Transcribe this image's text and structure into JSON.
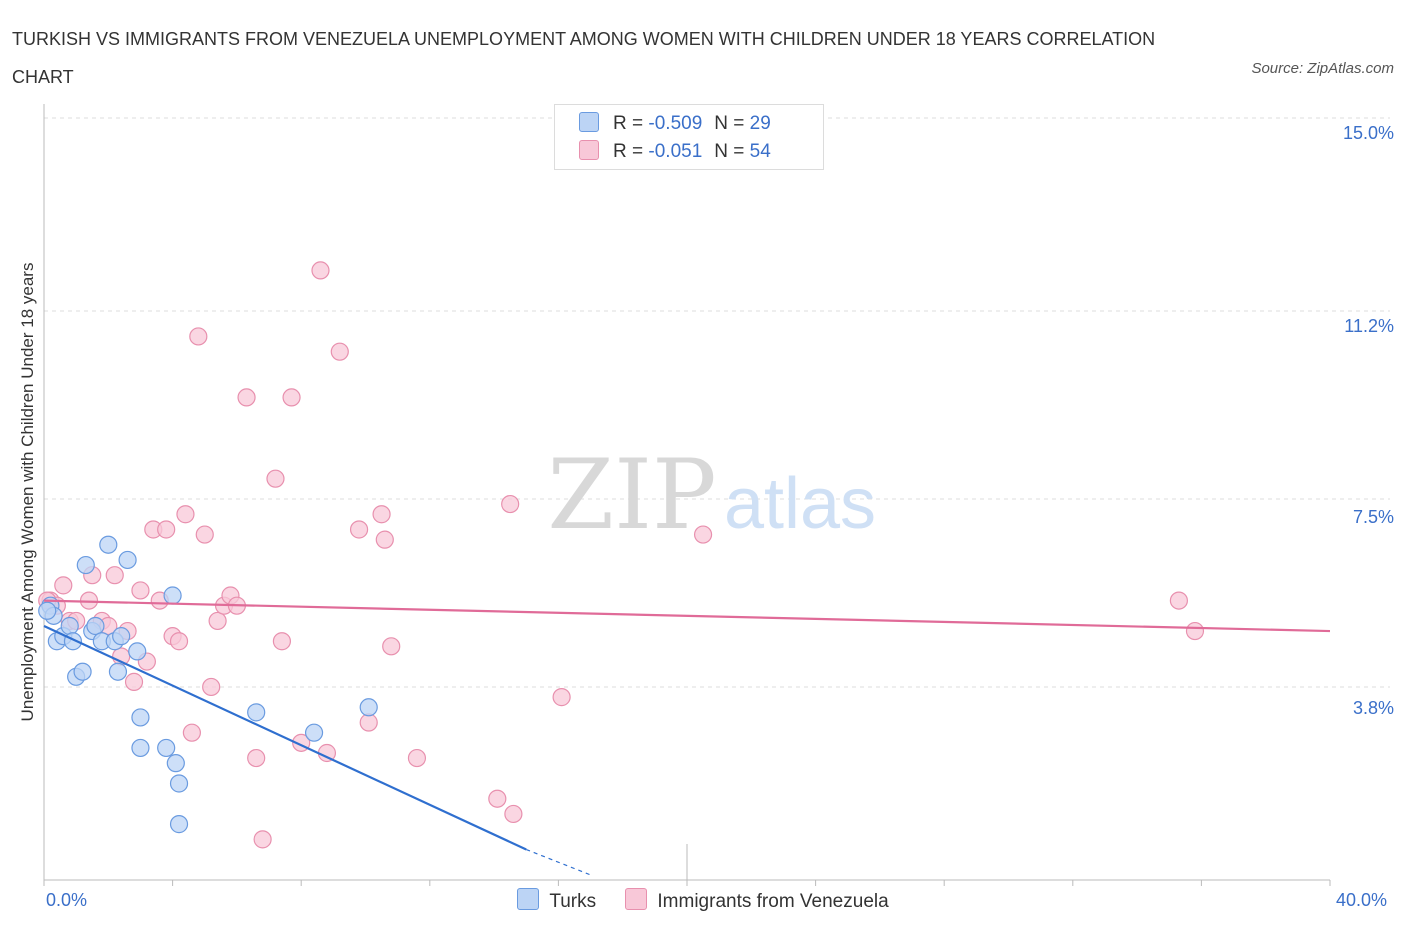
{
  "title": "TURKISH VS IMMIGRANTS FROM VENEZUELA UNEMPLOYMENT AMONG WOMEN WITH CHILDREN UNDER 18 YEARS CORRELATION CHART",
  "source": "Source: ZipAtlas.com",
  "watermark": {
    "zip": "ZIP",
    "atlas": "atlas"
  },
  "colors": {
    "turks_fill": "#bcd4f5",
    "turks_stroke": "#6a9be0",
    "turks_line": "#2f6fcf",
    "venezuela_fill": "#f8c8d8",
    "venezuela_stroke": "#e890ae",
    "venezuela_line": "#e06b98",
    "axis_text": "#3a6fc9",
    "grid": "#dddddd"
  },
  "legend_top": [
    {
      "r_label": "R =",
      "r_value": "-0.509",
      "n_label": "N =",
      "n_value": "29"
    },
    {
      "r_label": "R =",
      "r_value": "-0.051",
      "n_label": "N =",
      "n_value": "54"
    }
  ],
  "chart_data": {
    "type": "scatter",
    "xlabel": "",
    "ylabel": "Unemployment Among Women with Children Under 18 years",
    "xlim": [
      0,
      40
    ],
    "ylim": [
      0,
      15
    ],
    "x_tick_labels": [
      "0.0%",
      "40.0%"
    ],
    "y_ticks": [
      3.8,
      7.5,
      11.2,
      15.0
    ],
    "y_tick_labels": [
      "3.8%",
      "7.5%",
      "11.2%",
      "15.0%"
    ],
    "grid": true,
    "series": [
      {
        "name": "Turks",
        "points": [
          [
            0.2,
            5.4
          ],
          [
            0.3,
            5.2
          ],
          [
            0.4,
            4.7
          ],
          [
            0.6,
            4.8
          ],
          [
            0.8,
            5.0
          ],
          [
            0.9,
            4.7
          ],
          [
            1.0,
            4.0
          ],
          [
            1.2,
            4.1
          ],
          [
            1.3,
            6.2
          ],
          [
            1.5,
            4.9
          ],
          [
            1.6,
            5.0
          ],
          [
            1.8,
            4.7
          ],
          [
            2.0,
            6.6
          ],
          [
            2.2,
            4.7
          ],
          [
            2.3,
            4.1
          ],
          [
            2.4,
            4.8
          ],
          [
            2.6,
            6.3
          ],
          [
            2.9,
            4.5
          ],
          [
            3.0,
            3.2
          ],
          [
            3.0,
            2.6
          ],
          [
            3.8,
            2.6
          ],
          [
            4.0,
            5.6
          ],
          [
            4.1,
            2.3
          ],
          [
            4.2,
            1.9
          ],
          [
            4.2,
            1.1
          ],
          [
            6.6,
            3.3
          ],
          [
            8.4,
            2.9
          ],
          [
            10.1,
            3.4
          ],
          [
            0.1,
            5.3
          ]
        ],
        "trend": {
          "x": [
            0,
            15
          ],
          "y": [
            5.0,
            0.6
          ],
          "dashed_to": [
            17,
            0.1
          ]
        }
      },
      {
        "name": "Immigrants from Venezuela",
        "points": [
          [
            0.2,
            5.5
          ],
          [
            0.4,
            5.4
          ],
          [
            0.6,
            5.8
          ],
          [
            0.8,
            5.1
          ],
          [
            1.0,
            5.1
          ],
          [
            1.4,
            5.5
          ],
          [
            1.5,
            6.0
          ],
          [
            1.6,
            5.0
          ],
          [
            1.8,
            5.1
          ],
          [
            2.0,
            5.0
          ],
          [
            2.2,
            6.0
          ],
          [
            2.4,
            4.4
          ],
          [
            2.6,
            4.9
          ],
          [
            2.8,
            3.9
          ],
          [
            3.0,
            5.7
          ],
          [
            3.2,
            4.3
          ],
          [
            3.4,
            6.9
          ],
          [
            3.6,
            5.5
          ],
          [
            3.8,
            6.9
          ],
          [
            4.0,
            4.8
          ],
          [
            4.2,
            4.7
          ],
          [
            4.4,
            7.2
          ],
          [
            4.6,
            2.9
          ],
          [
            4.8,
            10.7
          ],
          [
            5.0,
            6.8
          ],
          [
            5.2,
            3.8
          ],
          [
            5.4,
            5.1
          ],
          [
            5.6,
            5.4
          ],
          [
            5.8,
            5.6
          ],
          [
            6.0,
            5.4
          ],
          [
            6.3,
            9.5
          ],
          [
            6.6,
            2.4
          ],
          [
            6.8,
            0.8
          ],
          [
            7.2,
            7.9
          ],
          [
            7.4,
            4.7
          ],
          [
            7.7,
            9.5
          ],
          [
            8.0,
            2.7
          ],
          [
            8.6,
            12.0
          ],
          [
            8.8,
            2.5
          ],
          [
            9.2,
            10.4
          ],
          [
            9.8,
            6.9
          ],
          [
            10.1,
            3.1
          ],
          [
            10.5,
            7.2
          ],
          [
            10.6,
            6.7
          ],
          [
            10.8,
            4.6
          ],
          [
            11.6,
            2.4
          ],
          [
            14.1,
            1.6
          ],
          [
            14.5,
            7.4
          ],
          [
            14.6,
            1.3
          ],
          [
            16.1,
            3.6
          ],
          [
            20.5,
            6.8
          ],
          [
            35.3,
            5.5
          ],
          [
            35.8,
            4.9
          ],
          [
            0.1,
            5.5
          ]
        ],
        "trend": {
          "x": [
            0,
            40
          ],
          "y": [
            5.5,
            4.9
          ]
        }
      }
    ]
  },
  "legend_bottom": [
    "Turks",
    "Immigrants from Venezuela"
  ]
}
